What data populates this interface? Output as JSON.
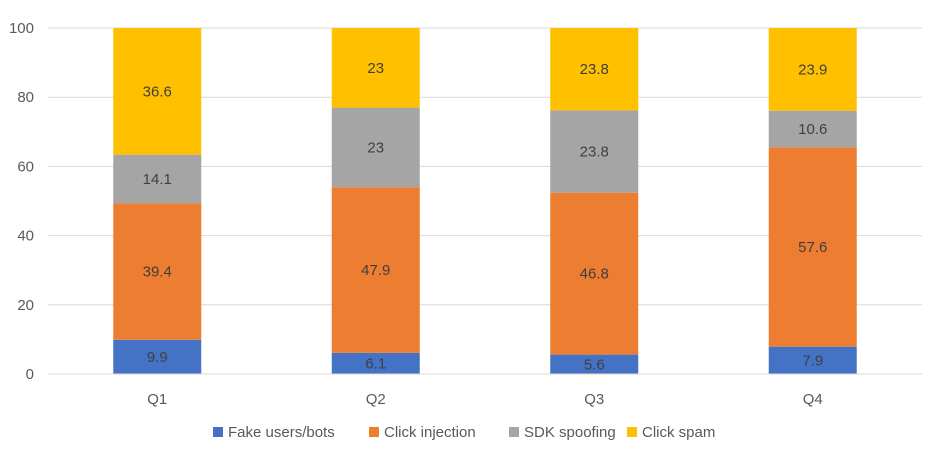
{
  "chart_data": {
    "type": "bar",
    "stacked": true,
    "categories": [
      "Q1",
      "Q2",
      "Q3",
      "Q4"
    ],
    "series": [
      {
        "name": "Fake users/bots",
        "color": "#4472C4",
        "values": [
          9.9,
          6.1,
          5.6,
          7.9
        ]
      },
      {
        "name": "Click injection",
        "color": "#ED7D31",
        "values": [
          39.4,
          47.9,
          46.8,
          57.6
        ]
      },
      {
        "name": "SDK spoofing",
        "color": "#A5A5A5",
        "values": [
          14.1,
          23,
          23.8,
          10.6
        ]
      },
      {
        "name": "Click spam",
        "color": "#FFC000",
        "values": [
          36.6,
          23,
          23.8,
          23.9
        ]
      }
    ],
    "ylim": [
      0,
      100
    ],
    "yticks": [
      0,
      20,
      40,
      60,
      80,
      100
    ],
    "grid": true,
    "legend_position": "bottom",
    "title": "",
    "xlabel": "",
    "ylabel": ""
  }
}
